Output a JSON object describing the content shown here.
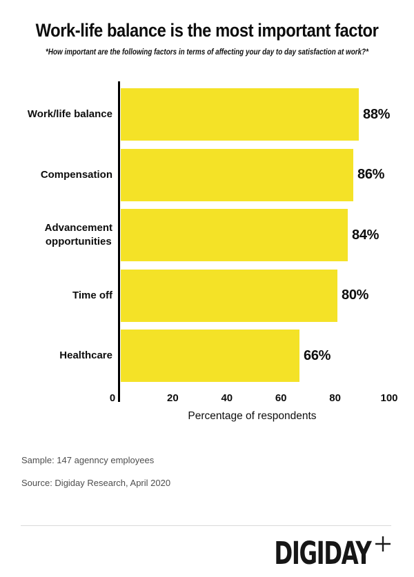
{
  "header": {
    "title": "Work-life balance is the most important factor",
    "subtitle": "*How important are the following factors in terms of affecting your day to day satisfaction at work?*"
  },
  "chart_data": {
    "type": "bar",
    "orientation": "horizontal",
    "categories": [
      "Work/life balance",
      "Compensation",
      "Advancement\nopportunities",
      "Time off",
      "Healthcare"
    ],
    "values": [
      88,
      86,
      84,
      80,
      66
    ],
    "value_labels": [
      "88%",
      "86%",
      "84%",
      "80%",
      "66%"
    ],
    "xlabel": "Percentage of respondents",
    "xticks": [
      0,
      20,
      40,
      60,
      80,
      100
    ],
    "xlim": [
      0,
      100
    ],
    "bar_color": "#F4E227",
    "axis_color": "#000000",
    "grid": false,
    "legend": "none"
  },
  "footer": {
    "sample": "Sample: 147 agenncy employees",
    "source": "Source: Digiday Research, April 2020",
    "logo_text": "DIGIDAY",
    "logo_plus_icon": "plus-icon"
  }
}
